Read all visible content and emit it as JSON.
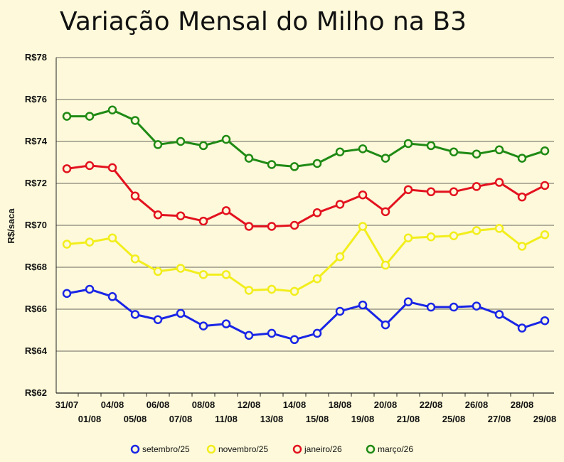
{
  "chart_data": {
    "type": "line",
    "title": "Variação Mensal do Milho na B3",
    "ylabel": "R$/saca",
    "xlabel": "",
    "ylim": [
      62,
      78
    ],
    "ytick_values": [
      62,
      64,
      66,
      68,
      70,
      72,
      74,
      76,
      78
    ],
    "ytick_labels": [
      "R$62",
      "R$64",
      "R$66",
      "R$68",
      "R$70",
      "R$72",
      "R$74",
      "R$76",
      "R$78"
    ],
    "grid": true,
    "legend_position": "bottom",
    "categories": [
      "31/07",
      "01/08",
      "04/08",
      "05/08",
      "06/08",
      "07/08",
      "08/08",
      "11/08",
      "12/08",
      "13/08",
      "14/08",
      "15/08",
      "18/08",
      "19/08",
      "20/08",
      "21/08",
      "22/08",
      "25/08",
      "26/08",
      "27/08",
      "28/08",
      "29/08"
    ],
    "series": [
      {
        "name": "setembro/25",
        "color": "#1a25e6",
        "values": [
          66.75,
          66.95,
          66.6,
          65.75,
          65.5,
          65.8,
          65.2,
          65.3,
          64.75,
          64.85,
          64.55,
          64.85,
          65.9,
          66.2,
          65.25,
          66.35,
          66.1,
          66.1,
          66.15,
          65.75,
          65.1,
          65.45
        ]
      },
      {
        "name": "novembro/25",
        "color": "#f2ee1c",
        "values": [
          69.1,
          69.2,
          69.4,
          68.4,
          67.8,
          67.95,
          67.65,
          67.65,
          66.9,
          66.95,
          66.85,
          67.45,
          68.5,
          69.95,
          68.1,
          69.4,
          69.45,
          69.5,
          69.75,
          69.85,
          69.0,
          69.55
        ]
      },
      {
        "name": "janeiro/26",
        "color": "#e3121f",
        "values": [
          72.7,
          72.85,
          72.75,
          71.4,
          70.5,
          70.45,
          70.2,
          70.7,
          69.95,
          69.95,
          70.0,
          70.6,
          71.0,
          71.45,
          70.65,
          71.7,
          71.6,
          71.6,
          71.85,
          72.05,
          71.35,
          71.9
        ]
      },
      {
        "name": "março/26",
        "color": "#1f8a14",
        "values": [
          75.2,
          75.2,
          75.5,
          75.0,
          73.85,
          74.0,
          73.8,
          74.1,
          73.2,
          72.9,
          72.8,
          72.95,
          73.5,
          73.65,
          73.2,
          73.9,
          73.8,
          73.5,
          73.4,
          73.6,
          73.2,
          73.55
        ]
      }
    ]
  }
}
